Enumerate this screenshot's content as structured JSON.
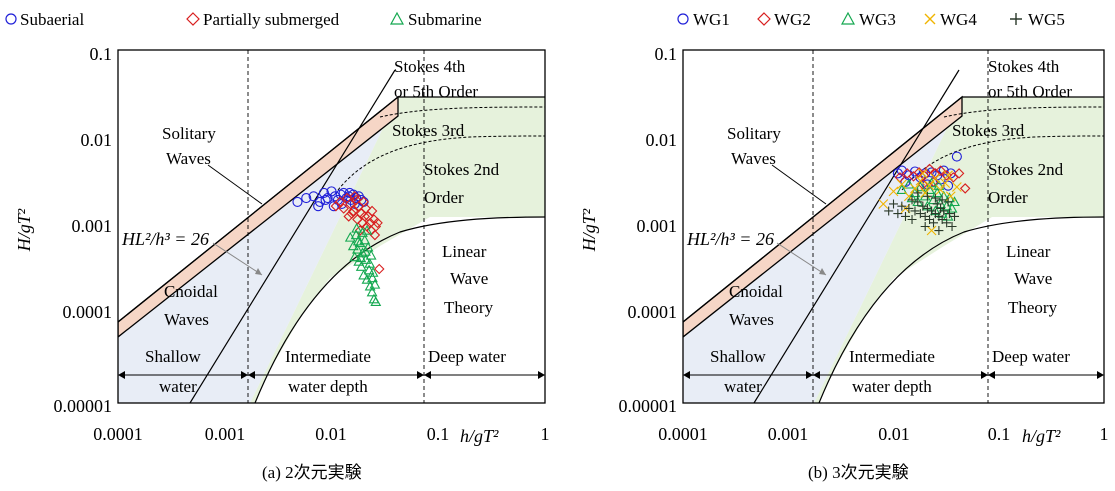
{
  "chart_data": [
    {
      "type": "scatter",
      "panel": "a",
      "caption": "(a) 2次元実験",
      "xlabel": "h/gT²",
      "ylabel": "H/gT²",
      "xscale": "log",
      "yscale": "log",
      "xlim": [
        0.0001,
        1
      ],
      "ylim": [
        1e-05,
        0.1
      ],
      "xticks": [
        "0.0001",
        "0.001",
        "0.01",
        "0.1",
        "1"
      ],
      "yticks": [
        "0.1",
        "0.01",
        "0.001",
        "0.0001",
        "0.00001"
      ],
      "legend_position": "top",
      "annotation": "HL²/h³ = 26",
      "regions": [
        "Stokes 4th",
        "or 5th Order",
        "Stokes 3rd",
        "Stokes 2nd",
        "Order",
        "Solitary",
        "Waves",
        "Cnoidal",
        "Waves",
        "Linear",
        "Wave",
        "Theory",
        "Shallow",
        "water",
        "Intermediate",
        "water depth",
        "Deep water"
      ],
      "series": [
        {
          "name": "Subaerial",
          "marker": "circle",
          "color": "#1f1fd8",
          "points": [
            [
              0.0048,
              0.0019
            ],
            [
              0.0058,
              0.0021
            ],
            [
              0.0068,
              0.0022
            ],
            [
              0.0078,
              0.0019
            ],
            [
              0.0085,
              0.0024
            ],
            [
              0.0092,
              0.0021
            ],
            [
              0.01,
              0.0025
            ],
            [
              0.0108,
              0.0022
            ],
            [
              0.0115,
              0.002
            ],
            [
              0.0122,
              0.0023
            ],
            [
              0.013,
              0.0024
            ],
            [
              0.0138,
              0.0021
            ],
            [
              0.0145,
              0.0022
            ],
            [
              0.0152,
              0.002
            ],
            [
              0.016,
              0.0023
            ],
            [
              0.017,
              0.0021
            ],
            [
              0.018,
              0.0022
            ],
            [
              0.019,
              0.002
            ],
            [
              0.02,
              0.0019
            ],
            [
              0.0125,
              0.0018
            ],
            [
              0.0105,
              0.0017
            ],
            [
              0.0088,
              0.002
            ],
            [
              0.0075,
              0.0017
            ],
            [
              0.0148,
              0.0024
            ],
            [
              0.0165,
              0.0018
            ]
          ]
        },
        {
          "name": "Partially submerged",
          "marker": "diamond",
          "color": "#d81f1f",
          "points": [
            [
              0.011,
              0.0017
            ],
            [
              0.012,
              0.0019
            ],
            [
              0.013,
              0.0016
            ],
            [
              0.014,
              0.0021
            ],
            [
              0.015,
              0.0018
            ],
            [
              0.016,
              0.0015
            ],
            [
              0.017,
              0.002
            ],
            [
              0.018,
              0.0017
            ],
            [
              0.019,
              0.0014
            ],
            [
              0.02,
              0.0019
            ],
            [
              0.021,
              0.0016
            ],
            [
              0.022,
              0.0013
            ],
            [
              0.023,
              0.0011
            ],
            [
              0.024,
              0.0015
            ],
            [
              0.025,
              0.0012
            ],
            [
              0.026,
              0.001
            ],
            [
              0.0155,
              0.0014
            ],
            [
              0.0175,
              0.0012
            ],
            [
              0.0195,
              0.0011
            ],
            [
              0.0215,
              0.001
            ],
            [
              0.0235,
              0.0009
            ],
            [
              0.0255,
              0.0008
            ],
            [
              0.0165,
              0.0022
            ],
            [
              0.0145,
              0.0013
            ],
            [
              0.0185,
              0.0009
            ],
            [
              0.028,
              0.00033
            ],
            [
              0.027,
              0.0011
            ],
            [
              0.0205,
              0.0013
            ]
          ]
        },
        {
          "name": "Submarine",
          "marker": "triangle",
          "color": "#14a850",
          "points": [
            [
              0.015,
              0.00075
            ],
            [
              0.016,
              0.0006
            ],
            [
              0.0165,
              0.00045
            ],
            [
              0.017,
              0.0008
            ],
            [
              0.0175,
              0.00055
            ],
            [
              0.018,
              0.0004
            ],
            [
              0.0185,
              0.00065
            ],
            [
              0.019,
              0.00035
            ],
            [
              0.0195,
              0.0005
            ],
            [
              0.02,
              0.00028
            ],
            [
              0.0205,
              0.0007
            ],
            [
              0.021,
              0.00042
            ],
            [
              0.0215,
              0.00025
            ],
            [
              0.022,
              0.00058
            ],
            [
              0.0225,
              0.00032
            ],
            [
              0.023,
              0.00021
            ],
            [
              0.0235,
              0.00047
            ],
            [
              0.024,
              0.00018
            ],
            [
              0.0245,
              0.0003
            ],
            [
              0.025,
              0.00015
            ],
            [
              0.0255,
              0.00022
            ],
            [
              0.026,
              0.00014
            ],
            [
              0.0215,
              0.0009
            ],
            [
              0.0195,
              0.00085
            ],
            [
              0.0172,
              0.00095
            ],
            [
              0.0228,
              0.00038
            ],
            [
              0.0208,
              0.00052
            ],
            [
              0.0188,
              0.00044
            ],
            [
              0.0242,
              0.00026
            ],
            [
              0.0178,
              0.00068
            ]
          ]
        }
      ]
    },
    {
      "type": "scatter",
      "panel": "b",
      "caption": "(b) 3次元実験",
      "xlabel": "h/gT²",
      "ylabel": "H/gT²",
      "xscale": "log",
      "yscale": "log",
      "xlim": [
        0.0001,
        1
      ],
      "ylim": [
        1e-05,
        0.1
      ],
      "xticks": [
        "0.0001",
        "0.001",
        "0.01",
        "0.1",
        "1"
      ],
      "yticks": [
        "0.1",
        "0.01",
        "0.001",
        "0.0001",
        "0.00001"
      ],
      "legend_position": "top",
      "annotation": "HL²/h³ = 26",
      "regions": [
        "Stokes 4th",
        "or 5th Order",
        "Stokes 3rd",
        "Stokes 2nd",
        "Order",
        "Solitary",
        "Waves",
        "Cnoidal",
        "Waves",
        "Linear",
        "Wave",
        "Theory",
        "Shallow",
        "water",
        "Intermediate",
        "water depth",
        "Deep water"
      ],
      "series": [
        {
          "name": "WG1",
          "marker": "circle",
          "color": "#1f1fd8",
          "points": [
            [
              0.011,
              0.004
            ],
            [
              0.012,
              0.0043
            ],
            [
              0.014,
              0.0038
            ],
            [
              0.016,
              0.0042
            ],
            [
              0.018,
              0.0036
            ],
            [
              0.02,
              0.004
            ],
            [
              0.023,
              0.0041
            ],
            [
              0.026,
              0.0038
            ],
            [
              0.03,
              0.0043
            ],
            [
              0.035,
              0.004
            ],
            [
              0.04,
              0.0062
            ],
            [
              0.013,
              0.0032
            ],
            [
              0.021,
              0.003
            ],
            [
              0.028,
              0.0034
            ],
            [
              0.033,
              0.0029
            ]
          ]
        },
        {
          "name": "WG2",
          "marker": "diamond",
          "color": "#d81f1f",
          "points": [
            [
              0.0115,
              0.0036
            ],
            [
              0.0135,
              0.004
            ],
            [
              0.0155,
              0.0037
            ],
            [
              0.0175,
              0.0041
            ],
            [
              0.0195,
              0.0038
            ],
            [
              0.022,
              0.0045
            ],
            [
              0.025,
              0.004
            ],
            [
              0.028,
              0.0043
            ],
            [
              0.032,
              0.0038
            ],
            [
              0.037,
              0.0036
            ],
            [
              0.042,
              0.004
            ],
            [
              0.048,
              0.0027
            ],
            [
              0.024,
              0.0032
            ],
            [
              0.019,
              0.003
            ]
          ]
        },
        {
          "name": "WG3",
          "marker": "triangle",
          "color": "#14a850",
          "points": [
            [
              0.012,
              0.0026
            ],
            [
              0.014,
              0.003
            ],
            [
              0.016,
              0.0024
            ],
            [
              0.018,
              0.0028
            ],
            [
              0.02,
              0.0022
            ],
            [
              0.022,
              0.0026
            ],
            [
              0.024,
              0.002
            ],
            [
              0.026,
              0.0024
            ],
            [
              0.028,
              0.0018
            ],
            [
              0.03,
              0.0022
            ],
            [
              0.032,
              0.0017
            ],
            [
              0.034,
              0.0021
            ],
            [
              0.036,
              0.0016
            ],
            [
              0.038,
              0.0019
            ],
            [
              0.017,
              0.0019
            ],
            [
              0.021,
              0.0017
            ],
            [
              0.025,
              0.0015
            ],
            [
              0.029,
              0.0014
            ],
            [
              0.033,
              0.0013
            ],
            [
              0.023,
              0.0031
            ],
            [
              0.027,
              0.0029
            ],
            [
              0.015,
              0.0021
            ]
          ]
        },
        {
          "name": "WG4",
          "marker": "x",
          "color": "#f0b400",
          "points": [
            [
              0.008,
              0.0018
            ],
            [
              0.01,
              0.0025
            ],
            [
              0.012,
              0.003
            ],
            [
              0.014,
              0.0022
            ],
            [
              0.016,
              0.0027
            ],
            [
              0.018,
              0.0033
            ],
            [
              0.02,
              0.0024
            ],
            [
              0.022,
              0.0029
            ],
            [
              0.025,
              0.0035
            ],
            [
              0.028,
              0.0026
            ],
            [
              0.031,
              0.0031
            ],
            [
              0.035,
              0.0022
            ],
            [
              0.04,
              0.0028
            ],
            [
              0.023,
              0.0009
            ],
            [
              0.019,
              0.004
            ],
            [
              0.013,
              0.0016
            ],
            [
              0.033,
              0.0038
            ]
          ]
        },
        {
          "name": "WG5",
          "marker": "plus",
          "color": "#2b3a2b",
          "points": [
            [
              0.009,
              0.0015
            ],
            [
              0.01,
              0.0018
            ],
            [
              0.011,
              0.0014
            ],
            [
              0.012,
              0.0017
            ],
            [
              0.013,
              0.0013
            ],
            [
              0.014,
              0.0016
            ],
            [
              0.015,
              0.0012
            ],
            [
              0.016,
              0.0015
            ],
            [
              0.017,
              0.0019
            ],
            [
              0.018,
              0.0014
            ],
            [
              0.019,
              0.0017
            ],
            [
              0.02,
              0.0013
            ],
            [
              0.021,
              0.0016
            ],
            [
              0.022,
              0.0012
            ],
            [
              0.023,
              0.0015
            ],
            [
              0.024,
              0.0011
            ],
            [
              0.025,
              0.0014
            ],
            [
              0.026,
              0.0018
            ],
            [
              0.027,
              0.0013
            ],
            [
              0.028,
              0.0016
            ],
            [
              0.029,
              0.0012
            ],
            [
              0.03,
              0.0015
            ],
            [
              0.032,
              0.0011
            ],
            [
              0.034,
              0.0014
            ],
            [
              0.036,
              0.001
            ],
            [
              0.038,
              0.0013
            ],
            [
              0.025,
              0.0021
            ],
            [
              0.021,
              0.0022
            ],
            [
              0.017,
              0.0024
            ],
            [
              0.029,
              0.002
            ],
            [
              0.033,
              0.0019
            ],
            [
              0.015,
              0.002
            ],
            [
              0.02,
              0.001
            ],
            [
              0.027,
              0.0009
            ]
          ]
        }
      ]
    }
  ]
}
